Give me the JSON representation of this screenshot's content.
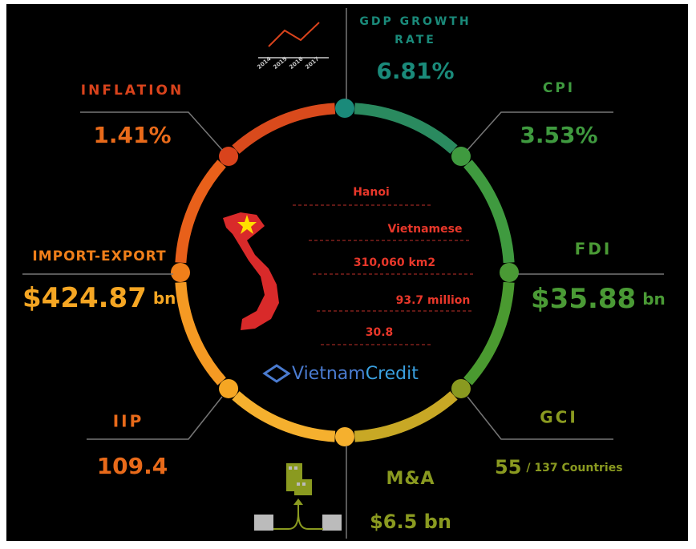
{
  "gdp": {
    "label_lines": [
      "GDP GROWTH",
      "RATE"
    ],
    "value": "6.81%",
    "years": [
      "2014",
      "2015",
      "2016",
      "2017"
    ]
  },
  "cpi": {
    "label": "CPI",
    "value": "3.53%"
  },
  "fdi": {
    "label": "FDI",
    "value": "$35.88",
    "unit": "bn"
  },
  "gci": {
    "label": "GCI",
    "value": "55",
    "note": "/ 137 Countries"
  },
  "ma": {
    "label": "M&A",
    "value": "$6.5 bn"
  },
  "iip": {
    "label": "IIP",
    "value": "109.4"
  },
  "import_export": {
    "label": "IMPORT-EXPORT",
    "value": "$424.87",
    "unit": "bn"
  },
  "inflation": {
    "label": "INFLATION",
    "value": "1.41%"
  },
  "facts": [
    "Hanoi",
    "Vietnamese",
    "310,060 km2",
    "93.7 million",
    "30.8"
  ],
  "logo": {
    "part1": "Vietnam",
    "part2": "Credit"
  }
}
